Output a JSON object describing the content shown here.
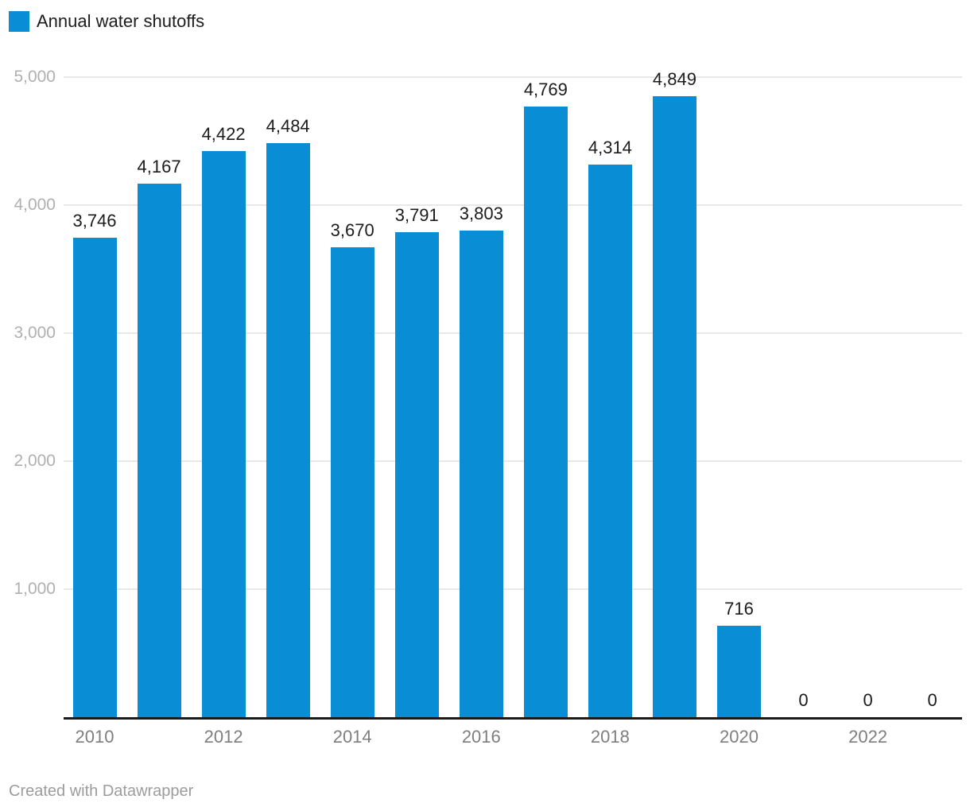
{
  "legend": {
    "label": "Annual water shutoffs"
  },
  "footer": {
    "credit": "Created with Datawrapper"
  },
  "colors": {
    "bar": "#098ed6",
    "gridline": "#e8e8e8",
    "axis_line": "#1a1a1a",
    "value_label": "#1c1c1c",
    "legend_text": "#1c1c1c",
    "y_tick_text": "#b0b0b0",
    "x_tick_text": "#7e7e7e",
    "footer_text": "#9c9c9c",
    "background": "#ffffff"
  },
  "chart_data": {
    "type": "bar",
    "title": "Annual water shutoffs",
    "categories": [
      "2010",
      "2011",
      "2012",
      "2013",
      "2014",
      "2015",
      "2016",
      "2017",
      "2018",
      "2019",
      "2020",
      "2021",
      "2022",
      "2023"
    ],
    "values": [
      3746,
      4167,
      4422,
      4484,
      3670,
      3791,
      3803,
      4769,
      4314,
      4849,
      716,
      0,
      0,
      0
    ],
    "value_labels": [
      "3,746",
      "4,167",
      "4,422",
      "4,484",
      "3,670",
      "3,791",
      "3,803",
      "4,769",
      "4,314",
      "4,849",
      "716",
      "0",
      "0",
      "0"
    ],
    "series_name": "Annual water shutoffs",
    "xlabel": "",
    "ylabel": "",
    "ylim": [
      0,
      5000
    ],
    "y_ticks": [
      {
        "value": 1000,
        "label": "1,000"
      },
      {
        "value": 2000,
        "label": "2,000"
      },
      {
        "value": 3000,
        "label": "3,000"
      },
      {
        "value": 4000,
        "label": "4,000"
      },
      {
        "value": 5000,
        "label": "5,000"
      }
    ],
    "x_ticks": [
      {
        "category": "2010",
        "label": "2010"
      },
      {
        "category": "2012",
        "label": "2012"
      },
      {
        "category": "2014",
        "label": "2014"
      },
      {
        "category": "2016",
        "label": "2016"
      },
      {
        "category": "2018",
        "label": "2018"
      },
      {
        "category": "2020",
        "label": "2020"
      },
      {
        "category": "2022",
        "label": "2022"
      }
    ],
    "grid": "horizontal",
    "legend_position": "top-left",
    "value_labels_shown": true
  }
}
